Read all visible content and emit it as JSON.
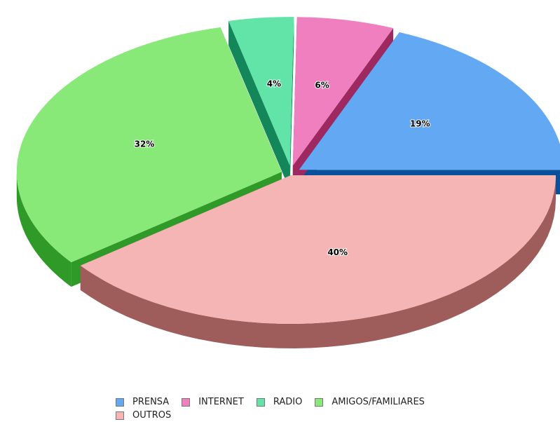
{
  "chart_data": {
    "type": "pie",
    "categories": [
      "PRENSA",
      "INTERNET",
      "RADIO",
      "AMIGOS/FAMILIARES",
      "OUTROS"
    ],
    "values": [
      19,
      6,
      4,
      32,
      40
    ],
    "value_labels": [
      "19%",
      "6%",
      "4%",
      "32%",
      "40%"
    ],
    "colors": [
      "#62a8f2",
      "#f07fbf",
      "#62e3a8",
      "#88e878",
      "#f5b5b5"
    ],
    "side_colors": [
      "#0a4f9a",
      "#9e2860",
      "#14875a",
      "#2f9a28",
      "#9e5c5a"
    ],
    "legend": "bottom"
  }
}
